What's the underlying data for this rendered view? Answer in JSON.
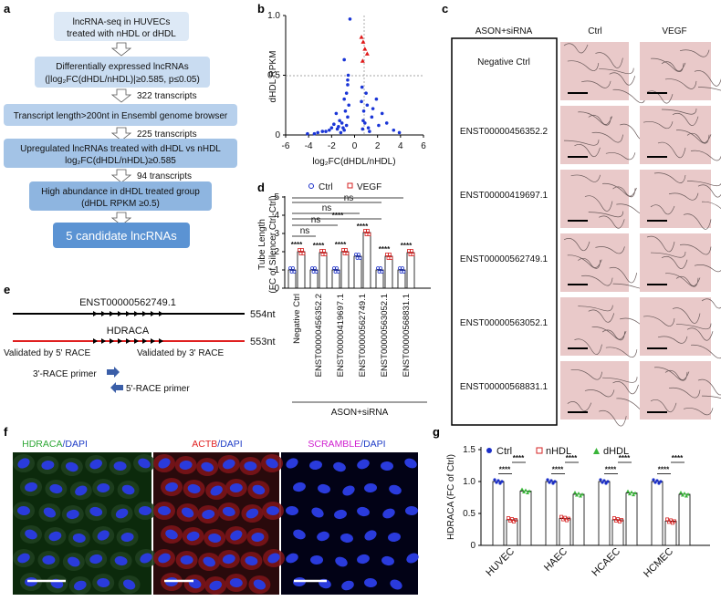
{
  "panels": {
    "a": "a",
    "b": "b",
    "c": "c",
    "d": "d",
    "e": "e",
    "f": "f",
    "g": "g"
  },
  "flow": {
    "boxes": [
      "lncRNA-seq in HUVECs",
      "treated with nHDL or dHDL",
      "Differentially expressed lncRNAs",
      "(|log₂FC(dHDL/nHDL)|≥0.585, p≤0.05)",
      "Transcript length>200nt in Ensembl genome browser",
      "Upregulated lncRNAs treated with dHDL vs nHDL",
      "log₂FC(dHDL/nHDL)≥0.585",
      "High abundance in dHDL treated group",
      "(dHDL RPKM ≥0.5)",
      "5 candidate lncRNAs"
    ],
    "arrows": [
      "322 transcripts",
      "225 transcripts",
      "94 transcripts"
    ]
  },
  "volcano": {
    "ylabel": "dHDL RPKM",
    "xlabel": "log₂FC(dHDL/nHDL)",
    "xticks": [
      "-6",
      "-4",
      "-2",
      "0",
      "2",
      "4",
      "6"
    ],
    "yticks": [
      "0",
      "0.5",
      "1.0"
    ]
  },
  "angio": {
    "header": "ASON+siRNA",
    "col1": "Ctrl",
    "col2": "VEGF",
    "rows": [
      "Negative Ctrl",
      "ENST00000456352.2",
      "ENST00000419697.1",
      "ENST00000562749.1",
      "ENST00000563052.1",
      "ENST00000568831.1"
    ]
  },
  "tube": {
    "ylabel1": "Tube Length",
    "ylabel2": "(FC of Silencer Ctrl-Ctrl)",
    "legend": [
      "Ctrl",
      "VEGF"
    ],
    "yticks": [
      "0",
      "1",
      "2",
      "3",
      "4",
      "5"
    ],
    "groups": [
      "Negative Ctrl",
      "ENST00000456352.2",
      "ENST00000419697.1",
      "ENST00000562749.1",
      "ENST00000563052.1",
      "ENST00000568831.1"
    ],
    "xgroup": "ASON+siRNA",
    "stars": "****",
    "ns": "ns",
    "ctrl": [
      1.0,
      1.0,
      1.0,
      1.75,
      1.0,
      1.0
    ],
    "vegf": [
      2.0,
      1.95,
      2.0,
      3.05,
      1.75,
      1.95
    ]
  },
  "race": {
    "t1": "ENST00000562749.1",
    "t1len": "554nt",
    "t2": "HDRACA",
    "t2len": "553nt",
    "left": "Validated by 5' RACE",
    "right": "Validated by 3' RACE",
    "p3": "3'-RACE primer",
    "p5": "5'-RACE primer"
  },
  "fluo": {
    "p1a": "HDRACA",
    "p1b": "/DAPI",
    "p2a": "ACTB",
    "p2b": "/DAPI",
    "p3a": "SCRAMBLE",
    "p3b": "/DAPI"
  },
  "bar": {
    "ylabel": "HDRACA (FC of Ctrl)",
    "legend": [
      "Ctrl",
      "nHDL",
      "dHDL"
    ],
    "yticks": [
      "0",
      "0.5",
      "1.0",
      "1.5"
    ],
    "categories": [
      "HUVEC",
      "HAEC",
      "HCAEC",
      "HCMEC"
    ],
    "stars": "****"
  },
  "chart_data": [
    {
      "type": "scatter",
      "xlabel": "log₂FC(dHDL/nHDL)",
      "ylabel": "dHDL RPKM",
      "xlim": [
        -6,
        6
      ],
      "ylim": [
        0,
        1.0
      ],
      "series": [
        {
          "name": "",
          "points": [
            [
              -1.2,
              0.02
            ],
            [
              -0.9,
              0.04
            ],
            [
              -1.5,
              0.05
            ],
            [
              -0.7,
              0.08
            ],
            [
              -2.0,
              0.06
            ],
            [
              -1.1,
              0.1
            ],
            [
              -0.6,
              0.15
            ],
            [
              -0.8,
              0.2
            ],
            [
              -1.3,
              0.12
            ],
            [
              -2.5,
              0.03
            ],
            [
              -3.2,
              0.02
            ],
            [
              -4.1,
              0.01
            ],
            [
              -0.5,
              0.25
            ],
            [
              -0.9,
              0.3
            ],
            [
              -1.6,
              0.18
            ],
            [
              -0.7,
              0.35
            ],
            [
              -0.6,
              0.42
            ],
            [
              -1.0,
              0.06
            ],
            [
              -1.8,
              0.09
            ],
            [
              -2.2,
              0.04
            ],
            [
              -0.55,
              0.5
            ],
            [
              -0.9,
              0.63
            ],
            [
              -0.4,
              0.97
            ],
            [
              -0.6,
              0.46
            ],
            [
              -1.4,
              0.07
            ],
            [
              -2.8,
              0.03
            ],
            [
              -3.5,
              0.01
            ],
            [
              0.7,
              0.05
            ],
            [
              0.9,
              0.1
            ],
            [
              1.2,
              0.06
            ],
            [
              1.5,
              0.15
            ],
            [
              0.8,
              0.2
            ],
            [
              1.1,
              0.25
            ],
            [
              2.1,
              0.08
            ],
            [
              2.8,
              0.1
            ],
            [
              3.4,
              0.04
            ],
            [
              1.9,
              0.3
            ],
            [
              0.65,
              0.4
            ],
            [
              1.0,
              0.35
            ],
            [
              3.9,
              0.02
            ],
            [
              2.4,
              0.18
            ],
            [
              1.6,
              0.22
            ],
            [
              0.75,
              0.12
            ],
            [
              1.3,
              0.03
            ],
            [
              0.6,
              0.28
            ]
          ]
        },
        {
          "name": "",
          "points": [
            [
              0.6,
              0.82
            ],
            [
              0.75,
              0.78
            ],
            [
              0.9,
              0.72
            ],
            [
              1.1,
              0.68
            ],
            [
              0.7,
              0.62
            ]
          ]
        }
      ]
    },
    {
      "type": "bar",
      "categories": [
        "Negative Ctrl",
        "ENST00000456352.2",
        "ENST00000419697.1",
        "ENST00000562749.1",
        "ENST00000563052.1",
        "ENST00000568831.1"
      ],
      "series": [
        {
          "name": "Ctrl",
          "values": [
            1.0,
            1.0,
            1.0,
            1.75,
            1.0,
            1.0
          ]
        },
        {
          "name": "VEGF",
          "values": [
            2.0,
            1.95,
            2.0,
            3.05,
            1.75,
            1.95
          ]
        }
      ],
      "ylim": [
        0,
        5
      ]
    },
    {
      "type": "bar",
      "categories": [
        "HUVEC",
        "HAEC",
        "HCAEC",
        "HCMEC"
      ],
      "series": [
        {
          "name": "Ctrl",
          "values": [
            1.0,
            1.0,
            1.0,
            1.0
          ]
        },
        {
          "name": "nHDL",
          "values": [
            0.4,
            0.42,
            0.4,
            0.38
          ]
        },
        {
          "name": "dHDL",
          "values": [
            0.85,
            0.8,
            0.82,
            0.8
          ]
        }
      ],
      "ylim": [
        0,
        1.5
      ]
    }
  ]
}
